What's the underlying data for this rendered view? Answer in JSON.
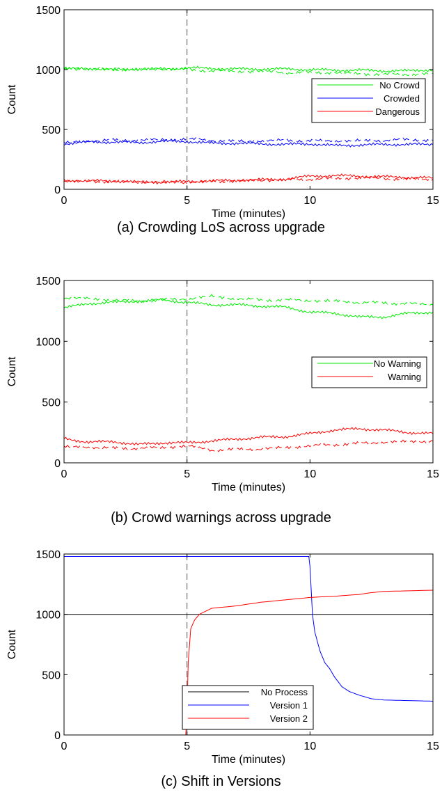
{
  "chart_data": [
    {
      "type": "line",
      "caption": "(a) Crowding LoS across upgrade",
      "xlabel": "Time (minutes)",
      "ylabel": "Count",
      "xlim": [
        0,
        15
      ],
      "ylim": [
        0,
        1500
      ],
      "xticks": [
        "0",
        "5",
        "10",
        "15"
      ],
      "yticks": [
        "0",
        "500",
        "1000",
        "1500"
      ],
      "vline_x": 5,
      "grid": false,
      "legend_position": "right-middle",
      "series": [
        {
          "name": "No Crowd",
          "color": "#00ee00",
          "style": "solid",
          "x": [
            0,
            1,
            2,
            3,
            4,
            5,
            6,
            7,
            8,
            9,
            10,
            11,
            12,
            13,
            14,
            15
          ],
          "y": [
            1005,
            1010,
            1000,
            1005,
            1005,
            1015,
            1010,
            1005,
            1005,
            1005,
            1000,
            995,
            995,
            990,
            990,
            1000
          ]
        },
        {
          "name": "",
          "color": "#00ee00",
          "style": "dashed",
          "x": [
            0,
            1,
            2,
            3,
            4,
            5,
            6,
            7,
            8,
            9,
            10,
            11,
            12,
            13,
            14,
            15
          ],
          "y": [
            1010,
            1005,
            1000,
            1000,
            1005,
            1000,
            990,
            985,
            985,
            975,
            975,
            975,
            965,
            960,
            960,
            965
          ]
        },
        {
          "name": "Crowded",
          "color": "#0000ff",
          "style": "solid",
          "x": [
            0,
            1,
            2,
            3,
            4,
            5,
            6,
            7,
            8,
            9,
            10,
            11,
            12,
            13,
            14,
            15
          ],
          "y": [
            380,
            395,
            395,
            390,
            400,
            400,
            385,
            385,
            380,
            375,
            380,
            365,
            370,
            375,
            375,
            375
          ]
        },
        {
          "name": "",
          "color": "#0000ff",
          "style": "dashed",
          "x": [
            0,
            1,
            2,
            3,
            4,
            5,
            6,
            7,
            8,
            9,
            10,
            11,
            12,
            13,
            14,
            15
          ],
          "y": [
            385,
            405,
            410,
            410,
            415,
            420,
            410,
            400,
            405,
            410,
            405,
            405,
            405,
            410,
            415,
            410
          ]
        },
        {
          "name": "Dangerous",
          "color": "#ff0000",
          "style": "solid",
          "x": [
            0,
            1,
            2,
            3,
            4,
            5,
            6,
            7,
            8,
            9,
            10,
            11,
            12,
            13,
            14,
            15
          ],
          "y": [
            75,
            70,
            70,
            60,
            60,
            65,
            70,
            75,
            80,
            85,
            110,
            115,
            110,
            105,
            100,
            95
          ]
        },
        {
          "name": "",
          "color": "#ff0000",
          "style": "dashed",
          "x": [
            0,
            1,
            2,
            3,
            4,
            5,
            6,
            7,
            8,
            9,
            10,
            11,
            12,
            13,
            14,
            15
          ],
          "y": [
            70,
            65,
            65,
            60,
            60,
            60,
            65,
            70,
            75,
            80,
            85,
            90,
            95,
            90,
            85,
            85
          ]
        }
      ]
    },
    {
      "type": "line",
      "caption": "(b) Crowd warnings across upgrade",
      "xlabel": "Time (minutes)",
      "ylabel": "Count",
      "xlim": [
        0,
        15
      ],
      "ylim": [
        0,
        1500
      ],
      "xticks": [
        "0",
        "5",
        "10",
        "15"
      ],
      "yticks": [
        "0",
        "500",
        "1000",
        "1500"
      ],
      "vline_x": 5,
      "grid": false,
      "legend_position": "right-middle",
      "series": [
        {
          "name": "No Warning",
          "color": "#00ee00",
          "style": "solid",
          "x": [
            0,
            1,
            2,
            3,
            4,
            5,
            6,
            7,
            8,
            9,
            10,
            11,
            12,
            13,
            14,
            15
          ],
          "y": [
            1275,
            1310,
            1320,
            1330,
            1340,
            1320,
            1300,
            1300,
            1290,
            1280,
            1240,
            1230,
            1200,
            1200,
            1230,
            1240
          ]
        },
        {
          "name": "Warning",
          "color": "#ff0000",
          "style": "solid",
          "x": [
            0,
            1,
            2,
            3,
            4,
            5,
            6,
            7,
            8,
            9,
            10,
            11,
            12,
            13,
            14,
            15
          ],
          "y": [
            200,
            170,
            175,
            150,
            165,
            165,
            180,
            195,
            210,
            215,
            240,
            270,
            280,
            270,
            250,
            240
          ]
        },
        {
          "name": "",
          "color": "#00ee00",
          "style": "dashed",
          "x": [
            0,
            1,
            2,
            3,
            4,
            5,
            6,
            7,
            8,
            9,
            10,
            11,
            12,
            13,
            14,
            15
          ],
          "y": [
            1360,
            1350,
            1340,
            1330,
            1340,
            1350,
            1370,
            1350,
            1340,
            1340,
            1335,
            1330,
            1320,
            1315,
            1310,
            1300
          ]
        },
        {
          "name": "",
          "color": "#ff0000",
          "style": "dashed",
          "x": [
            0,
            1,
            2,
            3,
            4,
            5,
            6,
            7,
            8,
            9,
            10,
            11,
            12,
            13,
            14,
            15
          ],
          "y": [
            130,
            130,
            120,
            120,
            125,
            140,
            105,
            110,
            115,
            125,
            140,
            150,
            160,
            170,
            175,
            180
          ]
        }
      ]
    },
    {
      "type": "line",
      "caption": "(c) Shift in Versions",
      "xlabel": "Time (minutes)",
      "ylabel": "Count",
      "xlim": [
        0,
        15
      ],
      "ylim": [
        0,
        1500
      ],
      "xticks": [
        "0",
        "5",
        "10",
        "15"
      ],
      "yticks": [
        "0",
        "500",
        "1000",
        "1500"
      ],
      "vline_x": 5,
      "grid": false,
      "legend_position": "bottom-middle",
      "series": [
        {
          "name": "No Process",
          "color": "#000000",
          "style": "solid",
          "x": [
            0,
            15
          ],
          "y": [
            1000,
            1000
          ]
        },
        {
          "name": "Version 1",
          "color": "#0000ff",
          "style": "solid",
          "x": [
            0,
            9.95,
            10.0,
            10.1,
            10.2,
            10.4,
            10.6,
            10.8,
            11.0,
            11.3,
            11.6,
            12.0,
            12.5,
            13.0,
            14.0,
            15.0
          ],
          "y": [
            1480,
            1480,
            1400,
            1000,
            850,
            700,
            600,
            550,
            480,
            400,
            360,
            330,
            300,
            290,
            285,
            280
          ]
        },
        {
          "name": "Version 2",
          "color": "#ff0000",
          "style": "solid",
          "x": [
            0,
            4.95,
            5.0,
            5.05,
            5.15,
            5.3,
            5.5,
            5.8,
            6.0,
            7.0,
            8.0,
            9.0,
            10.0,
            11.0,
            12.0,
            12.5,
            13.0,
            14.0,
            15.0
          ],
          "y": [
            0,
            0,
            200,
            600,
            880,
            950,
            1000,
            1030,
            1050,
            1070,
            1100,
            1120,
            1140,
            1150,
            1165,
            1180,
            1190,
            1195,
            1200
          ]
        }
      ]
    }
  ]
}
